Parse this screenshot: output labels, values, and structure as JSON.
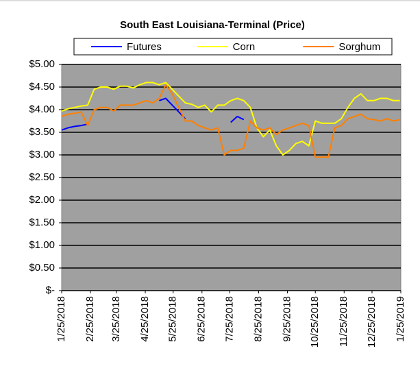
{
  "chart_data": {
    "type": "line",
    "title": "South East Louisiana-Terminal (Price)",
    "x": [
      "1/25/2018",
      "2/1/2018",
      "2/8/2018",
      "2/15/2018",
      "2/22/2018",
      "3/1/2018",
      "3/8/2018",
      "3/15/2018",
      "3/22/2018",
      "3/29/2018",
      "4/5/2018",
      "4/12/2018",
      "4/19/2018",
      "4/26/2018",
      "5/3/2018",
      "5/10/2018",
      "5/17/2018",
      "5/24/2018",
      "5/31/2018",
      "6/7/2018",
      "6/14/2018",
      "6/21/2018",
      "6/28/2018",
      "7/5/2018",
      "7/12/2018",
      "7/19/2018",
      "7/26/2018",
      "8/2/2018",
      "8/9/2018",
      "8/16/2018",
      "8/23/2018",
      "8/30/2018",
      "9/6/2018",
      "9/13/2018",
      "9/20/2018",
      "9/27/2018",
      "10/4/2018",
      "10/11/2018",
      "10/18/2018",
      "10/25/2018",
      "11/1/2018",
      "11/8/2018",
      "11/15/2018",
      "11/22/2018",
      "11/29/2018",
      "12/6/2018",
      "12/13/2018",
      "12/20/2018",
      "12/27/2018",
      "1/3/2019",
      "1/10/2019",
      "1/17/2019",
      "1/24/2019"
    ],
    "series": [
      {
        "name": "Futures",
        "color": "#0000ff",
        "values": [
          3.55,
          3.6,
          3.63,
          3.65,
          3.68,
          null,
          null,
          null,
          null,
          null,
          null,
          null,
          null,
          null,
          null,
          4.2,
          4.25,
          4.1,
          3.95,
          3.8,
          null,
          null,
          null,
          null,
          null,
          null,
          3.72,
          3.85,
          3.78,
          null,
          null,
          null,
          null,
          null,
          null,
          null,
          null,
          null,
          null,
          null,
          null,
          null,
          null,
          null,
          null,
          null,
          null,
          null,
          null,
          null,
          null,
          null,
          null
        ]
      },
      {
        "name": "Corn",
        "color": "#ffff00",
        "values": [
          3.97,
          4.02,
          4.05,
          4.08,
          4.1,
          4.45,
          4.5,
          4.5,
          4.45,
          4.52,
          4.52,
          4.48,
          4.55,
          4.6,
          4.6,
          4.55,
          4.6,
          4.45,
          4.3,
          4.15,
          4.12,
          4.05,
          4.1,
          3.95,
          4.1,
          4.1,
          4.2,
          4.25,
          4.2,
          4.05,
          3.6,
          3.4,
          3.55,
          3.2,
          3.0,
          3.1,
          3.25,
          3.3,
          3.2,
          3.75,
          3.7,
          3.7,
          3.7,
          3.8,
          4.05,
          4.25,
          4.35,
          4.2,
          4.2,
          4.25,
          4.25,
          4.2,
          4.2
        ]
      },
      {
        "name": "Sorghum",
        "color": "#ff8000",
        "values": [
          3.85,
          3.9,
          3.92,
          3.95,
          3.65,
          4.0,
          4.05,
          4.05,
          3.97,
          4.1,
          4.1,
          4.1,
          4.15,
          4.2,
          4.15,
          4.25,
          4.55,
          4.35,
          4.05,
          3.75,
          3.75,
          3.65,
          3.6,
          3.55,
          3.6,
          3.0,
          3.1,
          3.1,
          3.15,
          3.75,
          3.6,
          3.55,
          3.6,
          3.45,
          3.55,
          3.6,
          3.65,
          3.7,
          3.65,
          2.95,
          2.95,
          2.95,
          3.6,
          3.65,
          3.8,
          3.85,
          3.9,
          3.8,
          3.78,
          3.75,
          3.8,
          3.75,
          3.78
        ]
      }
    ],
    "xlim": [
      "1/25/2018",
      "1/25/2019"
    ],
    "xticks": [
      "1/25/2018",
      "2/25/2018",
      "3/25/2018",
      "4/25/2018",
      "5/25/2018",
      "6/25/2018",
      "7/25/2018",
      "8/25/2018",
      "9/25/2018",
      "10/25/2018",
      "11/25/2018",
      "12/25/2018",
      "1/25/2019"
    ],
    "ylim": [
      0,
      5
    ],
    "yticks": [
      {
        "value": 0,
        "label": "$-"
      },
      {
        "value": 0.5,
        "label": "$0.50"
      },
      {
        "value": 1,
        "label": "$1.00"
      },
      {
        "value": 1.5,
        "label": "$1.50"
      },
      {
        "value": 2,
        "label": "$2.00"
      },
      {
        "value": 2.5,
        "label": "$2.50"
      },
      {
        "value": 3,
        "label": "$3.00"
      },
      {
        "value": 3.5,
        "label": "$3.50"
      },
      {
        "value": 4,
        "label": "$4.00"
      },
      {
        "value": 4.5,
        "label": "$4.50"
      },
      {
        "value": 5,
        "label": "$5.00"
      }
    ],
    "grid": true,
    "legend": "top"
  }
}
